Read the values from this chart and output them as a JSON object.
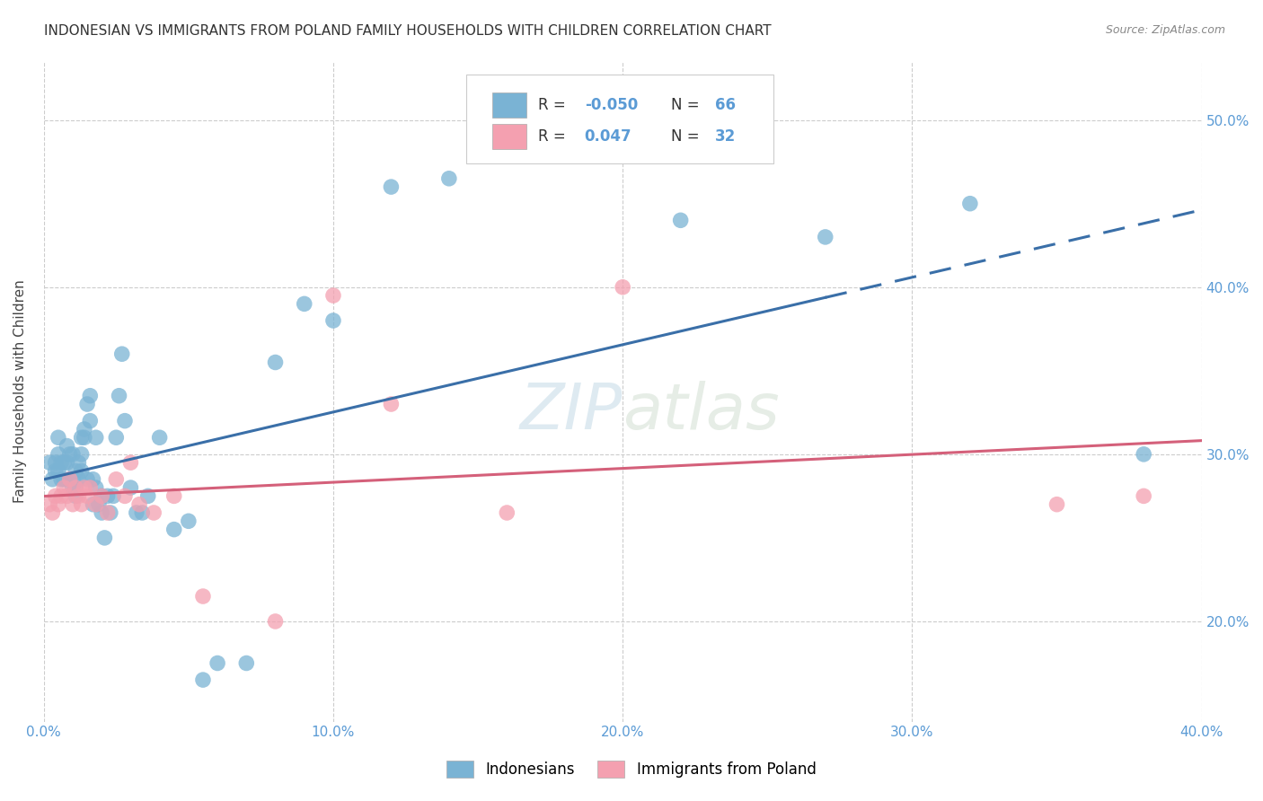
{
  "title": "INDONESIAN VS IMMIGRANTS FROM POLAND FAMILY HOUSEHOLDS WITH CHILDREN CORRELATION CHART",
  "source": "Source: ZipAtlas.com",
  "xlabel_ticks": [
    "0.0%",
    "10.0%",
    "20.0%",
    "30.0%",
    "40.0%"
  ],
  "ylabel_ticks": [
    "20.0%",
    "30.0%",
    "40.0%",
    "50.0%"
  ],
  "xlim": [
    0.0,
    0.4
  ],
  "ylim": [
    0.14,
    0.535
  ],
  "legend_label1": "Indonesians",
  "legend_label2": "Immigrants from Poland",
  "R1": "-0.050",
  "N1": "66",
  "R2": "0.047",
  "N2": "32",
  "color_blue": "#7ab3d4",
  "color_pink": "#f4a0b0",
  "line_color_blue": "#3a6fa8",
  "line_color_pink": "#d4607a",
  "indonesian_x": [
    0.002,
    0.003,
    0.004,
    0.004,
    0.005,
    0.005,
    0.005,
    0.006,
    0.006,
    0.007,
    0.007,
    0.008,
    0.008,
    0.009,
    0.009,
    0.01,
    0.01,
    0.01,
    0.011,
    0.011,
    0.011,
    0.012,
    0.012,
    0.013,
    0.013,
    0.013,
    0.014,
    0.014,
    0.015,
    0.015,
    0.016,
    0.016,
    0.017,
    0.017,
    0.018,
    0.018,
    0.019,
    0.02,
    0.02,
    0.021,
    0.022,
    0.023,
    0.024,
    0.025,
    0.026,
    0.027,
    0.028,
    0.03,
    0.032,
    0.034,
    0.036,
    0.04,
    0.045,
    0.05,
    0.055,
    0.06,
    0.07,
    0.08,
    0.09,
    0.1,
    0.12,
    0.14,
    0.22,
    0.27,
    0.32,
    0.38
  ],
  "indonesian_y": [
    0.295,
    0.285,
    0.29,
    0.295,
    0.29,
    0.3,
    0.31,
    0.285,
    0.295,
    0.285,
    0.295,
    0.295,
    0.305,
    0.285,
    0.3,
    0.28,
    0.285,
    0.3,
    0.275,
    0.28,
    0.29,
    0.285,
    0.295,
    0.29,
    0.3,
    0.31,
    0.31,
    0.315,
    0.285,
    0.33,
    0.32,
    0.335,
    0.27,
    0.285,
    0.28,
    0.31,
    0.27,
    0.275,
    0.265,
    0.25,
    0.275,
    0.265,
    0.275,
    0.31,
    0.335,
    0.36,
    0.32,
    0.28,
    0.265,
    0.265,
    0.275,
    0.31,
    0.255,
    0.26,
    0.165,
    0.175,
    0.175,
    0.355,
    0.39,
    0.38,
    0.46,
    0.465,
    0.44,
    0.43,
    0.45,
    0.3
  ],
  "poland_x": [
    0.002,
    0.003,
    0.004,
    0.005,
    0.006,
    0.007,
    0.008,
    0.009,
    0.01,
    0.011,
    0.012,
    0.013,
    0.014,
    0.015,
    0.016,
    0.018,
    0.02,
    0.022,
    0.025,
    0.028,
    0.03,
    0.033,
    0.038,
    0.045,
    0.055,
    0.08,
    0.1,
    0.12,
    0.16,
    0.2,
    0.35,
    0.38
  ],
  "poland_y": [
    0.27,
    0.265,
    0.275,
    0.27,
    0.275,
    0.28,
    0.275,
    0.285,
    0.27,
    0.28,
    0.275,
    0.27,
    0.28,
    0.275,
    0.28,
    0.27,
    0.275,
    0.265,
    0.285,
    0.275,
    0.295,
    0.27,
    0.265,
    0.275,
    0.215,
    0.2,
    0.395,
    0.33,
    0.265,
    0.4,
    0.27,
    0.275
  ]
}
